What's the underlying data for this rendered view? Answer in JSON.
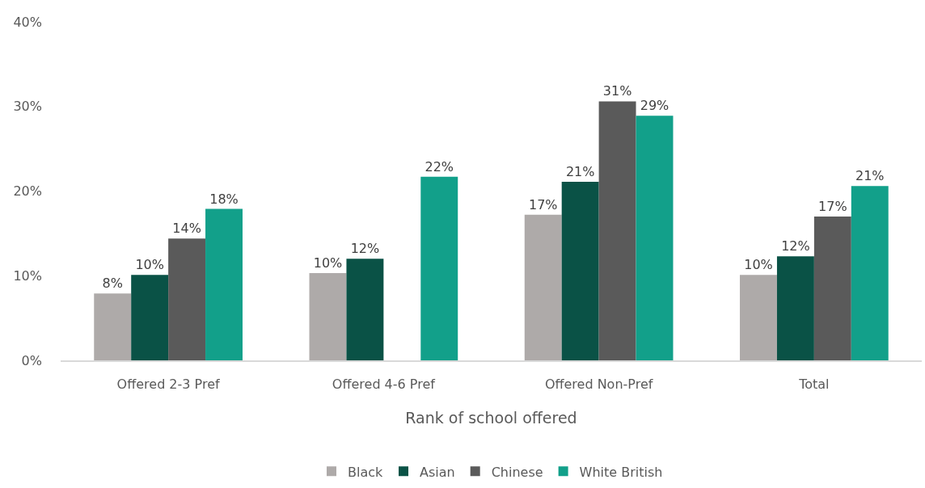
{
  "chart_data": {
    "type": "bar",
    "xlabel": "Rank of school offered",
    "categories": [
      "Offered 2-3 Pref",
      "Offered 4-6 Pref",
      "Offered Non-Pref",
      "Total"
    ],
    "series": [
      {
        "name": "Black",
        "color": "#aeaaa9",
        "values": [
          7.9,
          10.3,
          17.2,
          10.1
        ],
        "value_labels": [
          "8%",
          "10%",
          "17%",
          "10%"
        ]
      },
      {
        "name": "Asian",
        "color": "#0a5246",
        "values": [
          10.1,
          12.0,
          21.1,
          12.3
        ],
        "value_labels": [
          "10%",
          "12%",
          "21%",
          "12%"
        ]
      },
      {
        "name": "Chinese",
        "color": "#5a5a5a",
        "values": [
          14.4,
          null,
          30.6,
          17.0
        ],
        "value_labels": [
          "14%",
          null,
          "31%",
          "17%"
        ]
      },
      {
        "name": "White British",
        "color": "#12a08a",
        "values": [
          17.9,
          21.7,
          28.9,
          20.6
        ],
        "value_labels": [
          "18%",
          "22%",
          "29%",
          "21%"
        ]
      }
    ],
    "ylim": [
      0,
      40
    ],
    "yticks": [
      {
        "value": 0,
        "label": "0%"
      },
      {
        "value": 10,
        "label": "10%"
      },
      {
        "value": 20,
        "label": "20%"
      },
      {
        "value": 30,
        "label": "30%"
      },
      {
        "value": 40,
        "label": "40%"
      }
    ],
    "grid": false,
    "legend": "bottom"
  }
}
